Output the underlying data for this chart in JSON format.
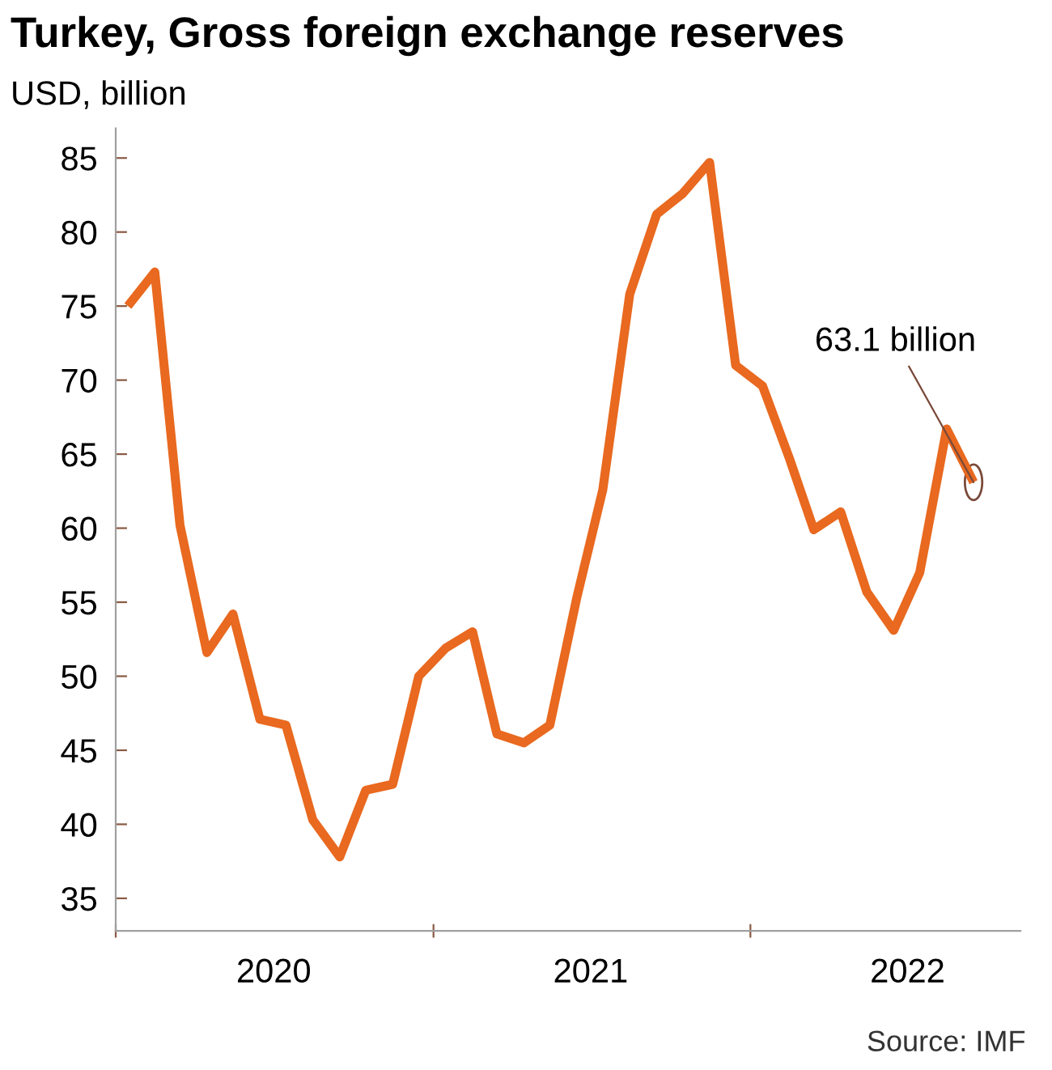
{
  "chart_data": {
    "type": "line",
    "title": "Turkey, Gross foreign exchange reserves",
    "ylabel": "USD, billion",
    "x": [
      "2020-01-15",
      "2020-02-15",
      "2020-03-15",
      "2020-04-15",
      "2020-05-15",
      "2020-06-15",
      "2020-07-15",
      "2020-08-15",
      "2020-09-15",
      "2020-10-15",
      "2020-11-15",
      "2020-12-15",
      "2021-01-15",
      "2021-02-15",
      "2021-03-15",
      "2021-04-15",
      "2021-05-15",
      "2021-06-15",
      "2021-07-15",
      "2021-08-15",
      "2021-09-15",
      "2021-10-15",
      "2021-11-15",
      "2021-12-15",
      "2022-01-15",
      "2022-02-15",
      "2022-03-15",
      "2022-04-15",
      "2022-05-15",
      "2022-06-15",
      "2022-07-15",
      "2022-08-15",
      "2022-09-15"
    ],
    "series": [
      {
        "color": "#e8691f",
        "values": [
          75.0,
          77.3,
          60.2,
          51.6,
          54.2,
          47.1,
          46.7,
          40.3,
          37.8,
          42.3,
          42.7,
          50.0,
          51.9,
          53.0,
          46.1,
          45.5,
          46.7,
          55.3,
          62.6,
          75.8,
          81.2,
          82.6,
          84.7,
          71.0,
          69.6,
          64.7,
          59.9,
          61.1,
          55.7,
          53.1,
          57.0,
          66.7,
          63.1
        ]
      }
    ],
    "xlim": [
      "2020-01-01",
      "2022-11-08"
    ],
    "xticks": [
      {
        "value": "2020-01-01",
        "label": null
      },
      {
        "value": "2020-07-01",
        "label": "2020"
      },
      {
        "value": "2021-01-01",
        "label": null
      },
      {
        "value": "2021-07-01",
        "label": "2021"
      },
      {
        "value": "2022-01-01",
        "label": null
      },
      {
        "value": "2022-07-01",
        "label": "2022"
      }
    ],
    "ylim": [
      32.8,
      87
    ],
    "yticks": [
      35,
      40,
      45,
      50,
      55,
      60,
      65,
      70,
      75,
      80,
      85
    ],
    "grid": false,
    "legend": false,
    "marker": "none",
    "line_style": "solid",
    "annotations": [
      {
        "text": "63.1 billion",
        "x": "2022-09-15",
        "y": 63.1
      },
      "Source: IMF"
    ]
  }
}
